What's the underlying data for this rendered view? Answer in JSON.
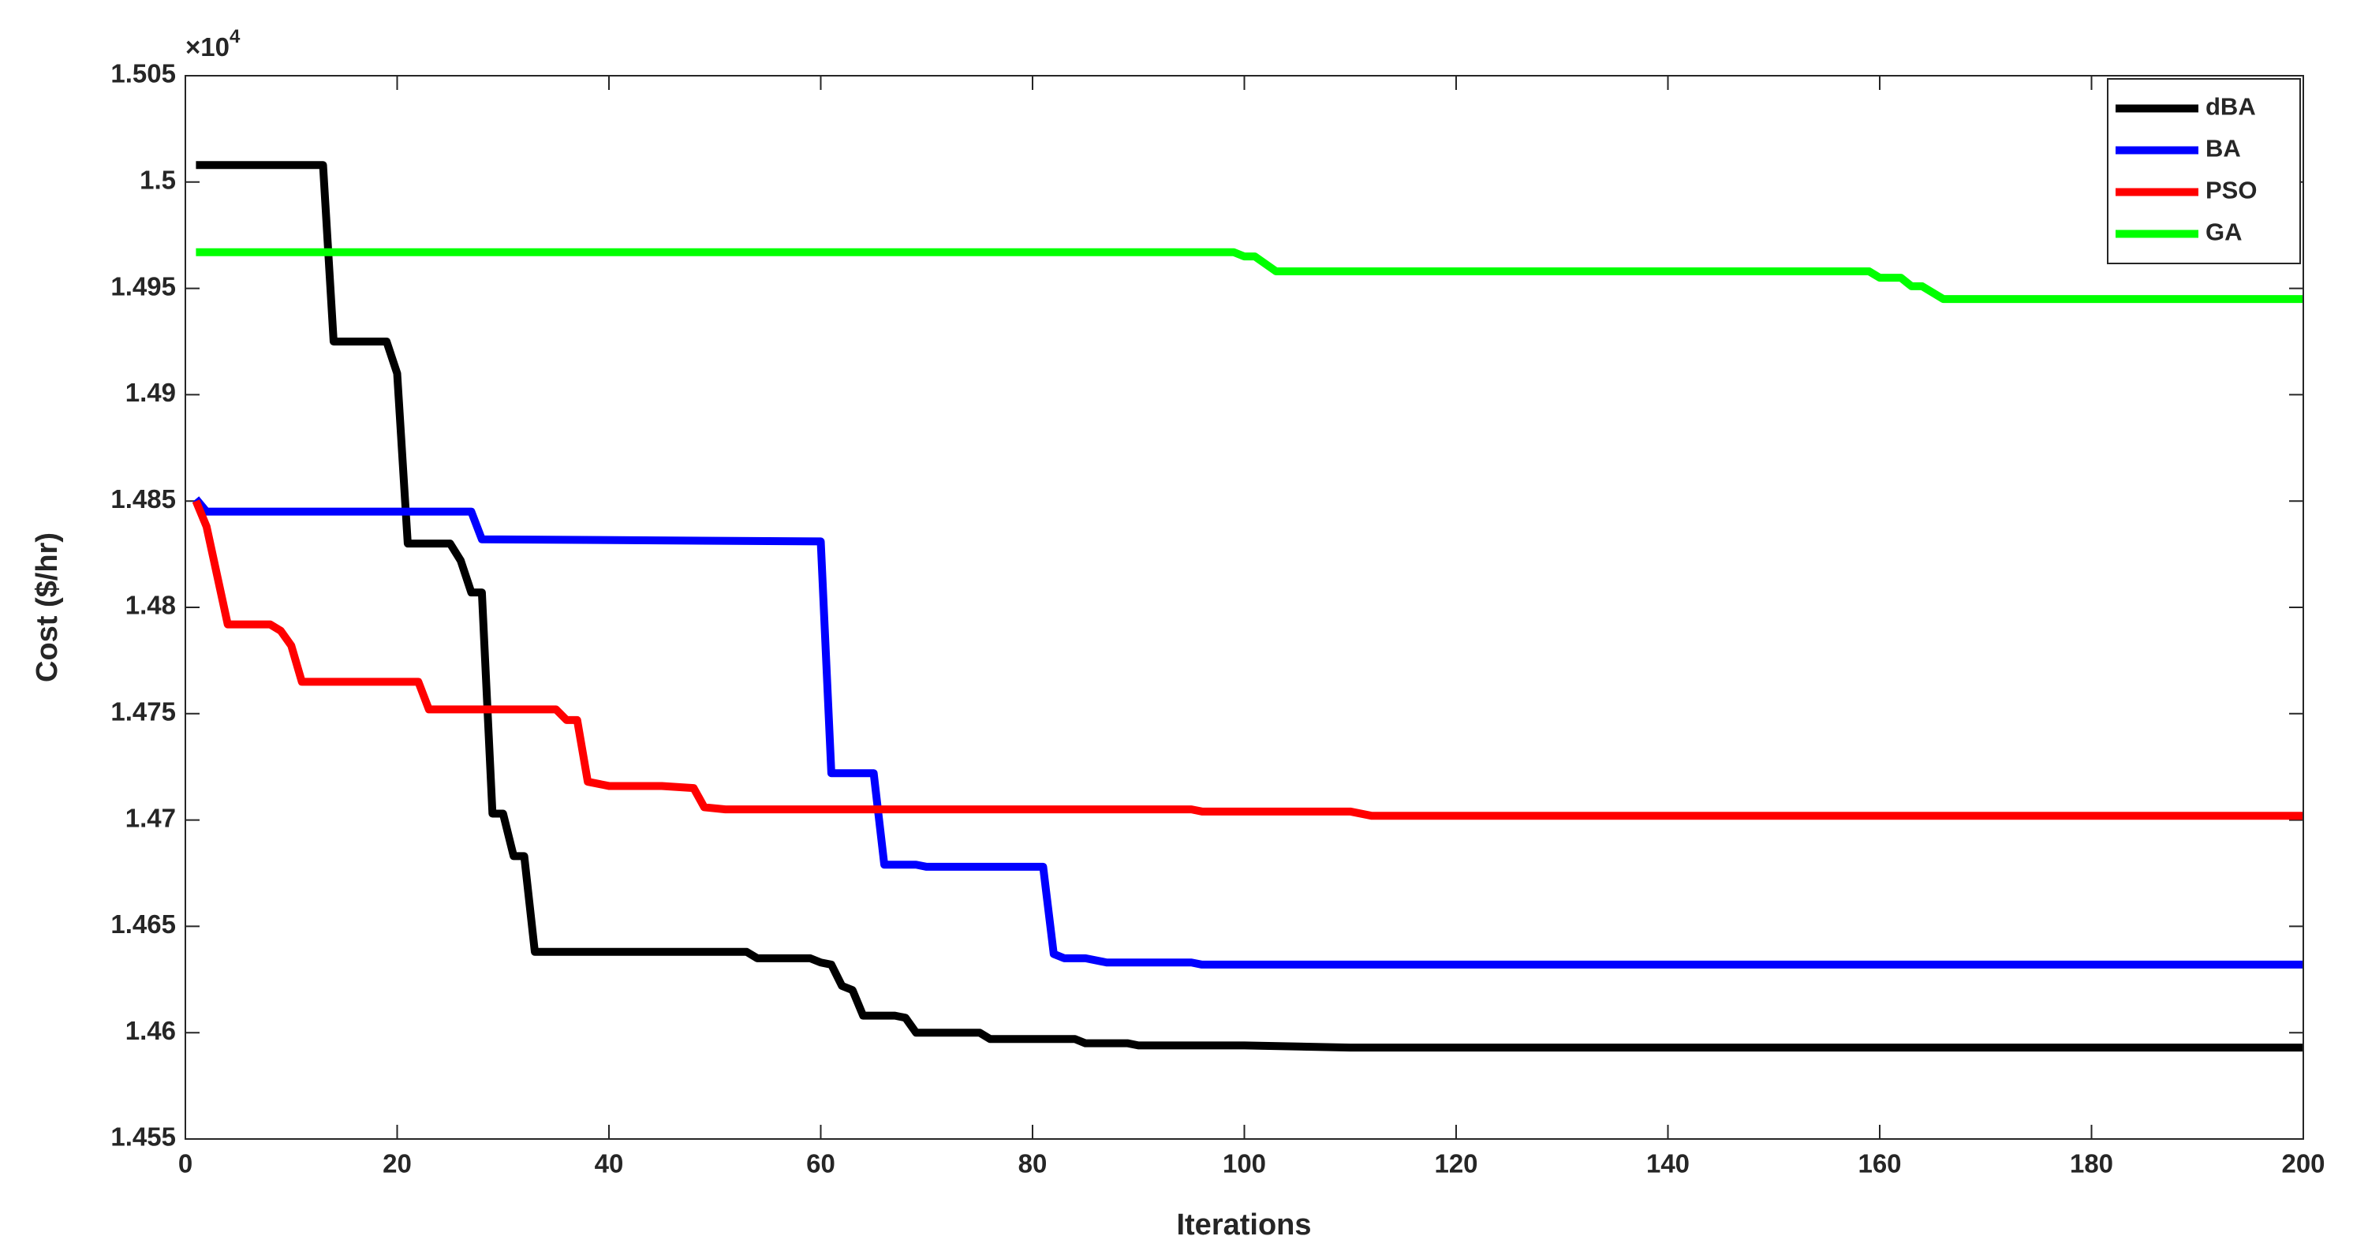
{
  "chart_data": {
    "type": "line",
    "x_label": "Iterations",
    "y_label": "Cost ($/hr)",
    "y_multiplier": {
      "base": "×10",
      "exponent": "4"
    },
    "xlim": [
      0,
      200
    ],
    "ylim": [
      1.455,
      1.505
    ],
    "xticks": [
      0,
      20,
      40,
      60,
      80,
      100,
      120,
      140,
      160,
      180,
      200
    ],
    "yticks": [
      1.455,
      1.46,
      1.465,
      1.47,
      1.475,
      1.48,
      1.485,
      1.49,
      1.495,
      1.5,
      1.505
    ],
    "legend": "upper right",
    "series": [
      {
        "name": "dBA",
        "color": "#000000",
        "x": [
          1,
          13,
          14,
          19,
          20,
          21,
          25,
          26,
          27,
          28,
          29,
          30,
          31,
          32,
          33,
          53,
          54,
          59,
          60,
          61,
          62,
          63,
          64,
          67,
          68,
          69,
          75,
          76,
          84,
          85,
          89,
          90,
          100,
          110,
          200
        ],
        "values": [
          1.5008,
          1.5008,
          1.4925,
          1.4925,
          1.491,
          1.483,
          1.483,
          1.4822,
          1.4807,
          1.4807,
          1.4703,
          1.4703,
          1.4683,
          1.4683,
          1.4638,
          1.4638,
          1.4635,
          1.4635,
          1.4633,
          1.4632,
          1.4622,
          1.462,
          1.4608,
          1.4608,
          1.4607,
          1.46,
          1.46,
          1.4597,
          1.4597,
          1.4595,
          1.4595,
          1.4594,
          1.4594,
          1.4593,
          1.4593
        ]
      },
      {
        "name": "BA",
        "color": "#0000ff",
        "x": [
          1,
          2,
          27,
          28,
          60,
          61,
          65,
          66,
          69,
          70,
          81,
          82,
          83,
          85,
          87,
          95,
          96,
          200
        ],
        "values": [
          1.4851,
          1.4845,
          1.4845,
          1.4832,
          1.4831,
          1.4722,
          1.4722,
          1.4679,
          1.4679,
          1.4678,
          1.4678,
          1.4637,
          1.4635,
          1.4635,
          1.4633,
          1.4633,
          1.4632,
          1.4632
        ]
      },
      {
        "name": "PSO",
        "color": "#ff0000",
        "x": [
          1,
          2,
          3,
          4,
          8,
          9,
          10,
          11,
          22,
          23,
          35,
          36,
          37,
          38,
          40,
          45,
          48,
          49,
          51,
          95,
          96,
          110,
          112,
          200
        ],
        "values": [
          1.485,
          1.4838,
          1.4815,
          1.4792,
          1.4792,
          1.4789,
          1.4782,
          1.4765,
          1.4765,
          1.4752,
          1.4752,
          1.4747,
          1.4747,
          1.4718,
          1.4716,
          1.4716,
          1.4715,
          1.4706,
          1.4705,
          1.4705,
          1.4704,
          1.4704,
          1.4702,
          1.4702
        ]
      },
      {
        "name": "GA",
        "color": "#00ff00",
        "x": [
          1,
          99,
          100,
          101,
          103,
          159,
          160,
          162,
          163,
          164,
          166,
          200
        ],
        "values": [
          1.4967,
          1.4967,
          1.4965,
          1.4965,
          1.4958,
          1.4958,
          1.4955,
          1.4955,
          1.4951,
          1.4951,
          1.4945,
          1.4945
        ]
      }
    ]
  }
}
